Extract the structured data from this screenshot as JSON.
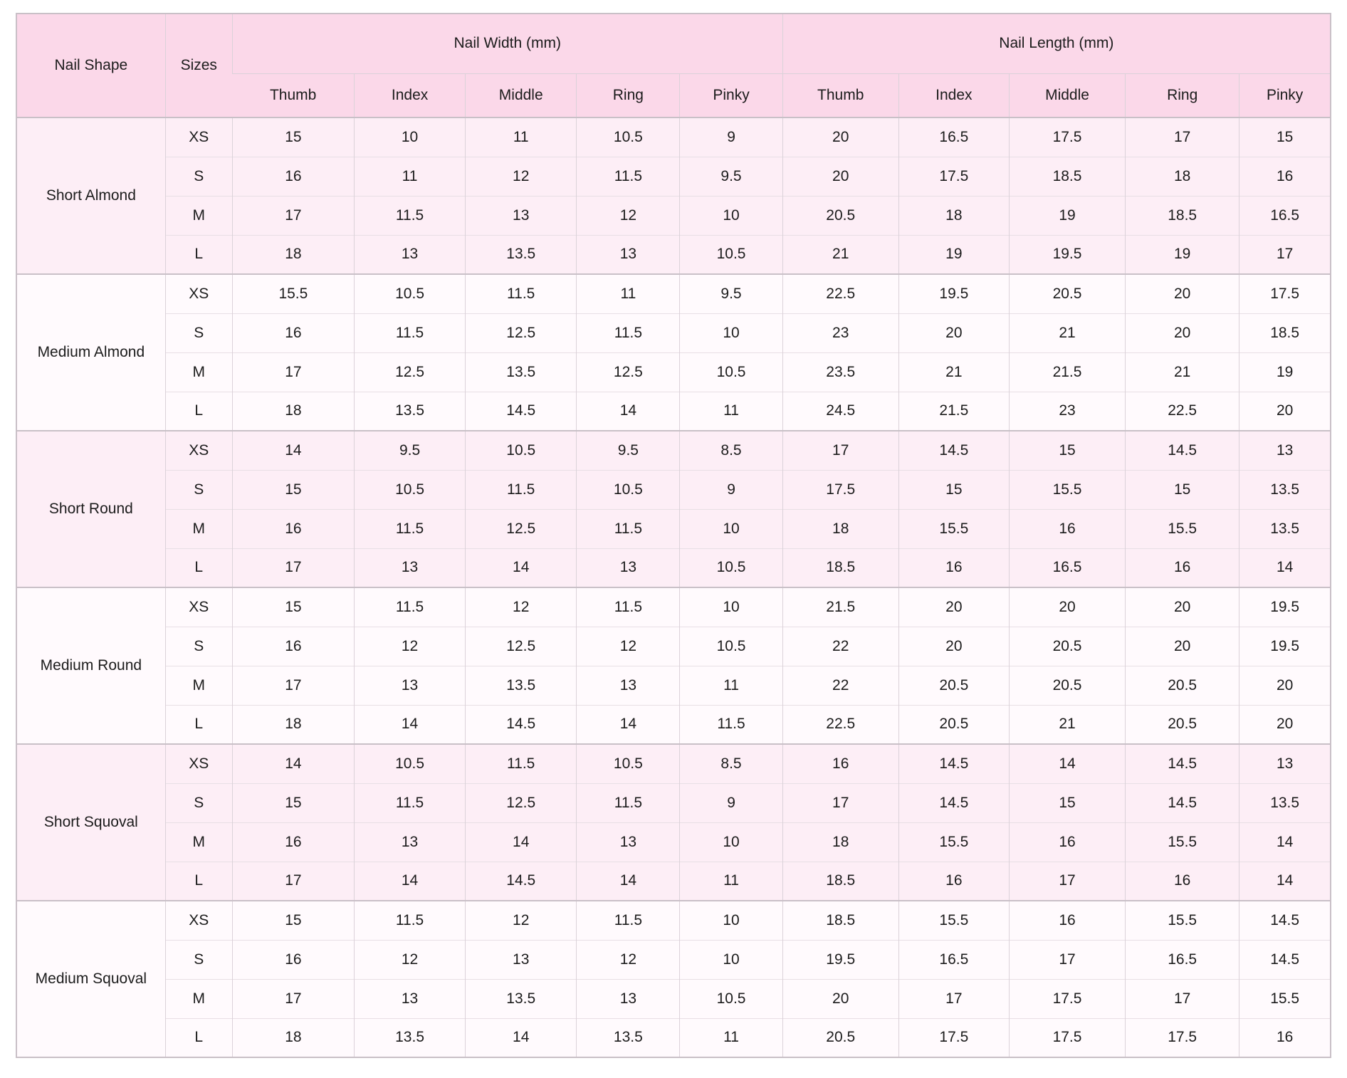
{
  "colors": {
    "page_bg": "#ffffff",
    "header_bg": "#fbd8e9",
    "row_pink": "#fdeef6",
    "row_white": "#fffafd",
    "border_strong": "#c9c0c7",
    "border_mid": "#dbd2d9",
    "border_light": "#e8dfe5",
    "text": "#1c1c1c"
  },
  "chart_data": {
    "type": "table",
    "header": {
      "col1": "Nail Shape",
      "col2": "Sizes",
      "group1": "Nail Width (mm)",
      "group2": "Nail Length (mm)",
      "subcolumns": [
        "Thumb",
        "Index",
        "Middle",
        "Ring",
        "Pinky"
      ]
    },
    "groups": [
      {
        "shape": "Short Almond",
        "rows": [
          {
            "size": "XS",
            "width": [
              15,
              10,
              11,
              10.5,
              9
            ],
            "length": [
              20,
              16.5,
              17.5,
              17,
              15
            ]
          },
          {
            "size": "S",
            "width": [
              16,
              11,
              12,
              11.5,
              9.5
            ],
            "length": [
              20,
              17.5,
              18.5,
              18,
              16
            ]
          },
          {
            "size": "M",
            "width": [
              17,
              11.5,
              13,
              12,
              10
            ],
            "length": [
              20.5,
              18,
              19,
              18.5,
              16.5
            ]
          },
          {
            "size": "L",
            "width": [
              18,
              13,
              13.5,
              13,
              10.5
            ],
            "length": [
              21,
              19,
              19.5,
              19,
              17
            ]
          }
        ]
      },
      {
        "shape": "Medium Almond",
        "rows": [
          {
            "size": "XS",
            "width": [
              15.5,
              10.5,
              11.5,
              11,
              9.5
            ],
            "length": [
              22.5,
              19.5,
              20.5,
              20,
              17.5
            ]
          },
          {
            "size": "S",
            "width": [
              16,
              11.5,
              12.5,
              11.5,
              10
            ],
            "length": [
              23,
              20,
              21,
              20,
              18.5
            ]
          },
          {
            "size": "M",
            "width": [
              17,
              12.5,
              13.5,
              12.5,
              10.5
            ],
            "length": [
              23.5,
              21,
              21.5,
              21,
              19
            ]
          },
          {
            "size": "L",
            "width": [
              18,
              13.5,
              14.5,
              14,
              11
            ],
            "length": [
              24.5,
              21.5,
              23,
              22.5,
              20
            ]
          }
        ]
      },
      {
        "shape": "Short Round",
        "rows": [
          {
            "size": "XS",
            "width": [
              14,
              9.5,
              10.5,
              9.5,
              8.5
            ],
            "length": [
              17,
              14.5,
              15,
              14.5,
              13
            ]
          },
          {
            "size": "S",
            "width": [
              15,
              10.5,
              11.5,
              10.5,
              9
            ],
            "length": [
              17.5,
              15,
              15.5,
              15,
              13.5
            ]
          },
          {
            "size": "M",
            "width": [
              16,
              11.5,
              12.5,
              11.5,
              10
            ],
            "length": [
              18,
              15.5,
              16,
              15.5,
              13.5
            ]
          },
          {
            "size": "L",
            "width": [
              17,
              13,
              14,
              13,
              10.5
            ],
            "length": [
              18.5,
              16,
              16.5,
              16,
              14
            ]
          }
        ]
      },
      {
        "shape": "Medium Round",
        "rows": [
          {
            "size": "XS",
            "width": [
              15,
              11.5,
              12,
              11.5,
              10
            ],
            "length": [
              21.5,
              20,
              20,
              20,
              19.5
            ]
          },
          {
            "size": "S",
            "width": [
              16,
              12,
              12.5,
              12,
              10.5
            ],
            "length": [
              22,
              20,
              20.5,
              20,
              19.5
            ]
          },
          {
            "size": "M",
            "width": [
              17,
              13,
              13.5,
              13,
              11
            ],
            "length": [
              22,
              20.5,
              20.5,
              20.5,
              20
            ]
          },
          {
            "size": "L",
            "width": [
              18,
              14,
              14.5,
              14,
              11.5
            ],
            "length": [
              22.5,
              20.5,
              21,
              20.5,
              20
            ]
          }
        ]
      },
      {
        "shape": "Short Squoval",
        "rows": [
          {
            "size": "XS",
            "width": [
              14,
              10.5,
              11.5,
              10.5,
              8.5
            ],
            "length": [
              16,
              14.5,
              14,
              14.5,
              13
            ]
          },
          {
            "size": "S",
            "width": [
              15,
              11.5,
              12.5,
              11.5,
              9
            ],
            "length": [
              17,
              14.5,
              15,
              14.5,
              13.5
            ]
          },
          {
            "size": "M",
            "width": [
              16,
              13,
              14,
              13,
              10
            ],
            "length": [
              18,
              15.5,
              16,
              15.5,
              14
            ]
          },
          {
            "size": "L",
            "width": [
              17,
              14,
              14.5,
              14,
              11
            ],
            "length": [
              18.5,
              16,
              17,
              16,
              14
            ]
          }
        ]
      },
      {
        "shape": "Medium Squoval",
        "rows": [
          {
            "size": "XS",
            "width": [
              15,
              11.5,
              12,
              11.5,
              10
            ],
            "length": [
              18.5,
              15.5,
              16,
              15.5,
              14.5
            ]
          },
          {
            "size": "S",
            "width": [
              16,
              12,
              13,
              12,
              10
            ],
            "length": [
              19.5,
              16.5,
              17,
              16.5,
              14.5
            ]
          },
          {
            "size": "M",
            "width": [
              17,
              13,
              13.5,
              13,
              10.5
            ],
            "length": [
              20,
              17,
              17.5,
              17,
              15.5
            ]
          },
          {
            "size": "L",
            "width": [
              18,
              13.5,
              14,
              13.5,
              11
            ],
            "length": [
              20.5,
              17.5,
              17.5,
              17.5,
              16
            ]
          }
        ]
      }
    ]
  }
}
